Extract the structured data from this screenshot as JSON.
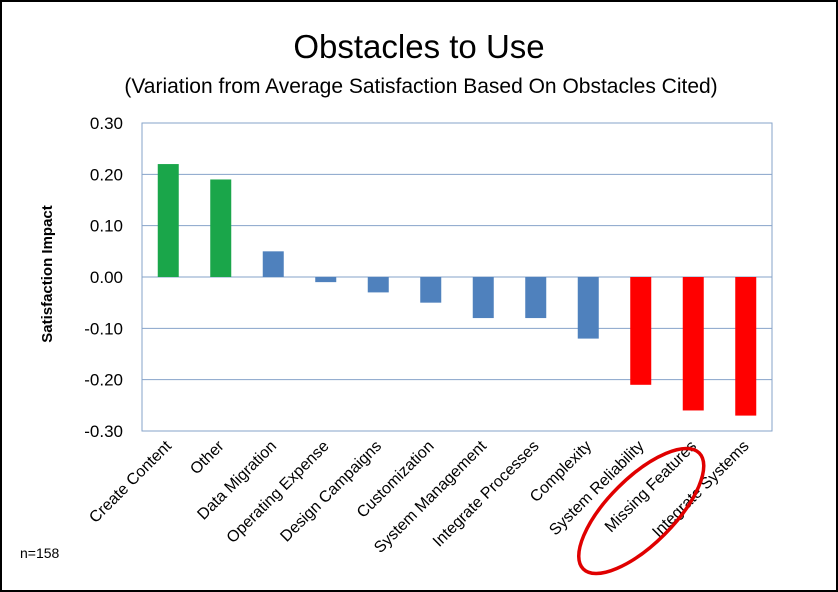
{
  "chart_data": {
    "type": "bar",
    "title": "Obstacles to Use",
    "subtitle": "(Variation from Average Satisfaction Based On Obstacles Cited)",
    "xlabel": "",
    "ylabel": "Satisfaction Impact",
    "ylim": [
      -0.3,
      0.3
    ],
    "yticks": [
      "0.30",
      "0.20",
      "0.10",
      "0.00",
      "-0.10",
      "-0.20",
      "-0.30"
    ],
    "ytick_values": [
      0.3,
      0.2,
      0.1,
      0.0,
      -0.1,
      -0.2,
      -0.3
    ],
    "categories": [
      "Create Content",
      "Other",
      "Data Migration",
      "Operating Expense",
      "Design Campaigns",
      "Customization",
      "System Management",
      "Integrate Processes",
      "Complexity",
      "System Reliability",
      "Missing Features",
      "Integrate Systems"
    ],
    "values": [
      0.22,
      0.19,
      0.05,
      -0.01,
      -0.03,
      -0.05,
      -0.08,
      -0.08,
      -0.12,
      -0.21,
      -0.26,
      -0.27
    ],
    "bar_colors": [
      "#1aa64a",
      "#1aa64a",
      "#4f81bd",
      "#4f81bd",
      "#4f81bd",
      "#4f81bd",
      "#4f81bd",
      "#4f81bd",
      "#4f81bd",
      "#ff0000",
      "#ff0000",
      "#ff0000"
    ],
    "grid": true,
    "legend": "none",
    "annotations": [
      {
        "type": "ellipse-highlight",
        "category": "Missing Features",
        "color": "#e00000"
      }
    ],
    "note": "n=158"
  }
}
